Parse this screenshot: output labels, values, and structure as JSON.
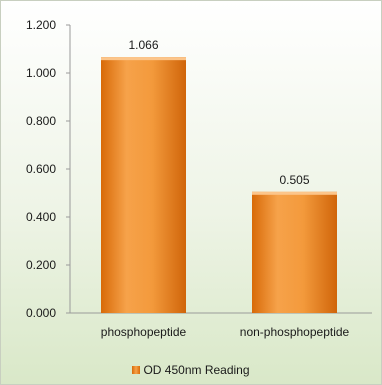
{
  "chart_data": {
    "type": "bar",
    "categories": [
      "phosphopeptide",
      "non-phosphopeptide"
    ],
    "series": [
      {
        "name": "OD 450nm Reading",
        "values": [
          1.066,
          0.505
        ]
      }
    ],
    "data_labels": [
      "1.066",
      "0.505"
    ],
    "y_ticks": [
      "0.000",
      "0.200",
      "0.400",
      "0.600",
      "0.800",
      "1.000",
      "1.200"
    ],
    "ylim": [
      0,
      1.2
    ],
    "grid": false,
    "legend_position": "bottom",
    "colors": {
      "bar": "#f39a3c",
      "bar_dark": "#d86a08",
      "bar_top": "#fcc58a"
    }
  }
}
